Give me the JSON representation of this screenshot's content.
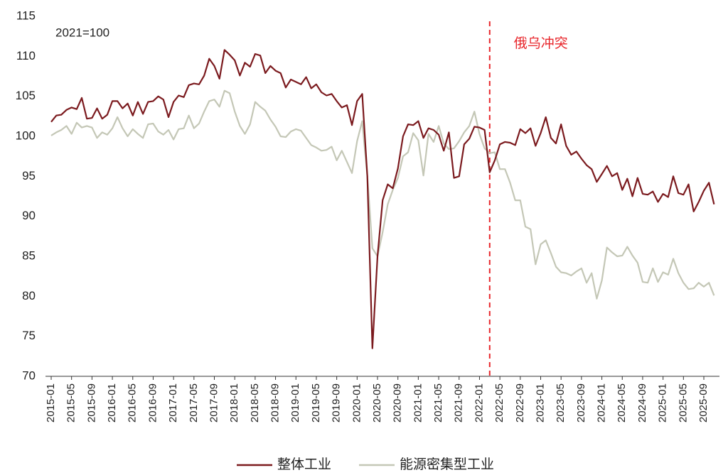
{
  "chart_data": {
    "type": "line",
    "annotations": [
      {
        "text": "2021=100"
      }
    ],
    "event": {
      "label": "俄乌冲突",
      "x": "2022-03",
      "color": "#e8262b"
    },
    "categories": [
      "2015-01",
      null,
      null,
      null,
      "2015-05",
      null,
      null,
      null,
      "2015-09",
      null,
      null,
      null,
      "2016-01",
      null,
      null,
      null,
      "2016-05",
      null,
      null,
      null,
      "2016-09",
      null,
      null,
      null,
      "2017-01",
      null,
      null,
      null,
      "2017-05",
      null,
      null,
      null,
      "2017-09",
      null,
      null,
      null,
      "2018-01",
      null,
      null,
      null,
      "2018-05",
      null,
      null,
      null,
      "2018-09",
      null,
      null,
      null,
      "2019-01",
      null,
      null,
      null,
      "2019-05",
      null,
      null,
      null,
      "2019-09",
      null,
      null,
      null,
      "2020-01",
      null,
      null,
      null,
      "2020-05",
      null,
      null,
      null,
      "2020-09",
      null,
      null,
      null,
      "2021-01",
      null,
      null,
      null,
      "2021-05",
      null,
      null,
      null,
      "2021-09",
      null,
      null,
      null,
      "2022-01",
      null,
      null,
      null,
      "2022-05",
      null,
      null,
      null,
      "2022-09",
      null,
      null,
      null,
      "2023-01",
      null,
      null,
      null,
      "2023-05",
      null,
      null,
      null,
      "2023-09",
      null,
      null,
      null,
      "2024-01",
      null,
      null,
      null,
      "2024-05",
      null,
      null,
      null,
      "2024-09",
      null,
      null,
      null,
      "2025-01",
      null,
      null,
      null,
      "2025-05",
      null,
      null,
      null,
      "2025-09",
      null,
      null
    ],
    "series": [
      {
        "name": "整体工业",
        "color": "#7b1a1e",
        "values": [
          101.8,
          102.6,
          102.7,
          103.3,
          103.6,
          103.4,
          104.8,
          102.2,
          102.3,
          103.5,
          102.2,
          102.7,
          104.4,
          104.4,
          103.5,
          104.1,
          102.6,
          104.3,
          102.8,
          104.3,
          104.4,
          105.0,
          104.6,
          102.4,
          104.3,
          105.1,
          104.9,
          106.4,
          106.6,
          106.5,
          107.6,
          109.7,
          108.8,
          107.2,
          110.8,
          110.2,
          109.5,
          107.6,
          109.2,
          108.7,
          110.3,
          110.1,
          107.9,
          108.8,
          108.2,
          107.9,
          106.1,
          107.1,
          106.8,
          106.5,
          107.4,
          106.0,
          106.5,
          105.5,
          105.1,
          105.3,
          104.4,
          103.6,
          103.9,
          101.4,
          104.4,
          105.3,
          95.0,
          73.5,
          85.0,
          92.0,
          94.0,
          93.5,
          96.0,
          100.0,
          101.5,
          101.4,
          101.9,
          99.8,
          101.0,
          100.8,
          100.2,
          98.2,
          100.5,
          94.8,
          95.0,
          99.0,
          99.7,
          101.2,
          101.1,
          100.8,
          95.5,
          97.0,
          99.0,
          99.3,
          99.2,
          98.9,
          100.9,
          100.4,
          101.0,
          98.8,
          100.4,
          102.4,
          99.8,
          99.1,
          101.5,
          98.8,
          97.7,
          98.1,
          97.2,
          96.4,
          95.9,
          94.3,
          95.3,
          96.3,
          95.0,
          95.4,
          93.3,
          94.7,
          92.5,
          94.8,
          92.8,
          92.7,
          93.1,
          91.8,
          92.8,
          92.4,
          95.0,
          92.9,
          92.7,
          94.0,
          90.6,
          91.8,
          93.2,
          94.2,
          91.5
        ]
      },
      {
        "name": "能源密集型工业",
        "color": "#c4c7b6",
        "values": [
          100.1,
          100.5,
          100.8,
          101.3,
          100.3,
          101.7,
          101.1,
          101.3,
          101.1,
          99.8,
          100.5,
          100.2,
          101.0,
          102.4,
          101.0,
          100.0,
          100.9,
          100.3,
          99.8,
          101.5,
          101.6,
          100.6,
          100.2,
          100.8,
          99.6,
          100.9,
          101.0,
          102.6,
          101.0,
          101.6,
          103.1,
          104.4,
          104.6,
          103.7,
          105.7,
          105.4,
          103.1,
          101.3,
          100.3,
          101.5,
          104.3,
          103.7,
          103.2,
          102.1,
          101.2,
          100.0,
          99.9,
          100.6,
          100.9,
          100.7,
          99.8,
          98.9,
          98.6,
          98.2,
          98.3,
          98.7,
          97.0,
          98.2,
          96.8,
          95.4,
          99.4,
          101.9,
          95.0,
          86.0,
          85.0,
          88.0,
          91.5,
          93.3,
          94.8,
          97.5,
          98.0,
          100.4,
          99.5,
          95.1,
          100.3,
          99.3,
          101.3,
          99.1,
          98.4,
          98.5,
          99.4,
          100.5,
          101.3,
          103.1,
          100.3,
          98.5,
          97.9,
          98.0,
          95.9,
          95.9,
          94.2,
          92.0,
          92.0,
          88.7,
          88.4,
          84.0,
          86.5,
          87.0,
          85.4,
          83.7,
          83.0,
          82.9,
          82.6,
          83.1,
          83.5,
          81.7,
          82.9,
          79.7,
          82.0,
          86.1,
          85.5,
          85.0,
          85.1,
          86.2,
          85.1,
          84.2,
          81.8,
          81.7,
          83.5,
          81.8,
          83.0,
          82.7,
          84.7,
          82.9,
          81.7,
          80.9,
          81.0,
          81.7,
          81.2,
          81.7,
          80.1
        ]
      }
    ],
    "ylim": [
      70,
      115
    ],
    "yticks": [
      70,
      75,
      80,
      85,
      90,
      95,
      100,
      105,
      110,
      115
    ],
    "legend": "bottom",
    "grid": false
  }
}
